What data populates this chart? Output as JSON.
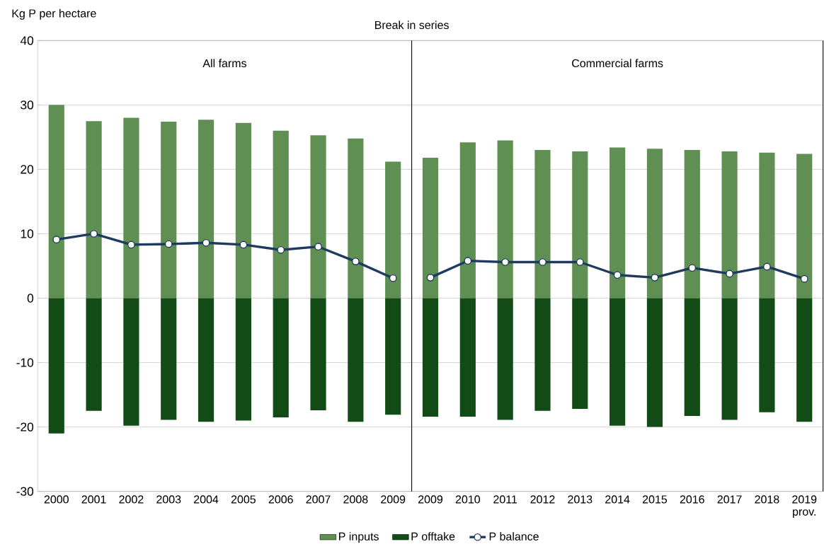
{
  "chart_data": [
    {
      "type": "bar",
      "ylabel": "Kg P per hectare",
      "categories": [
        "2000",
        "2001",
        "2002",
        "2003",
        "2004",
        "2005",
        "2006",
        "2007",
        "2008",
        "2009"
      ],
      "series": [
        {
          "name": "P inputs",
          "color": "#5f8f52",
          "values": [
            30.0,
            27.5,
            28.0,
            27.4,
            27.7,
            27.2,
            26.0,
            25.3,
            24.8,
            21.2
          ]
        },
        {
          "name": "P offtake",
          "color": "#134b16",
          "values": [
            -21.0,
            -17.5,
            -19.8,
            -18.9,
            -19.2,
            -19.0,
            -18.5,
            -17.4,
            -19.2,
            -18.1
          ]
        },
        {
          "name": "P balance",
          "type": "line",
          "color": "#1f3a5f",
          "values": [
            9.1,
            10.0,
            8.3,
            8.4,
            8.6,
            8.3,
            7.5,
            8.0,
            5.7,
            3.1
          ]
        }
      ],
      "stacked": true,
      "ylim": [
        -30,
        40
      ],
      "yticks": [
        -30,
        -20,
        -10,
        0,
        10,
        20,
        30,
        40
      ],
      "grid": "y",
      "legend": "bottom",
      "marker": "circle",
      "line_style": "solid",
      "annotations": [
        "All farms"
      ]
    },
    {
      "type": "bar",
      "categories": [
        "2009",
        "2010",
        "2011",
        "2012",
        "2013",
        "2014",
        "2015",
        "2016",
        "2017",
        "2018",
        "2019 prov."
      ],
      "series": [
        {
          "color": "#5f8f52",
          "values": [
            21.8,
            24.2,
            24.5,
            23.0,
            22.8,
            23.4,
            23.2,
            23.0,
            22.8,
            22.6,
            22.4
          ]
        },
        {
          "color": "#134b16",
          "values": [
            -18.4,
            -18.4,
            -18.9,
            -17.5,
            -17.2,
            -19.8,
            -20.0,
            -18.3,
            -18.9,
            -17.7,
            -19.2
          ]
        },
        {
          "type": "line",
          "color": "#1f3a5f",
          "values": [
            3.2,
            5.8,
            5.6,
            5.6,
            5.6,
            3.6,
            3.2,
            4.7,
            3.8,
            4.9,
            3.0
          ]
        }
      ],
      "stacked": true,
      "ylim": [
        -30,
        40
      ],
      "yticks": [
        -30,
        -20,
        -10,
        0,
        10,
        20,
        30,
        40
      ],
      "tick_labels": "x",
      "grid": "y",
      "marker": "circle",
      "line_style": "solid",
      "title": "Break in series",
      "annotations": [
        "Commercial farms"
      ]
    }
  ]
}
